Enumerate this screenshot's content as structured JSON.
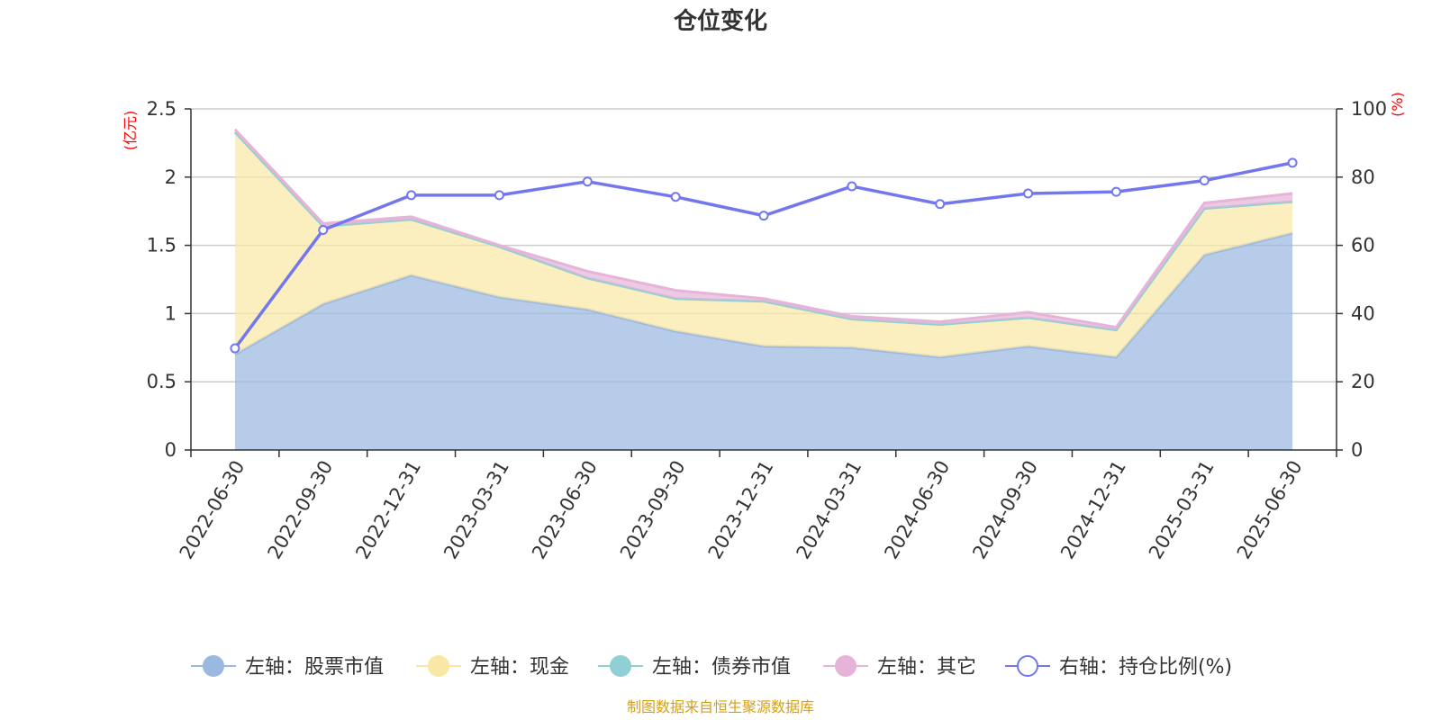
{
  "chart_data": {
    "type": "area",
    "title": "仓位变化",
    "left_axis_unit": "(亿元)",
    "right_axis_unit": "(%)",
    "categories": [
      "2022-06-30",
      "2022-09-30",
      "2022-12-31",
      "2023-03-31",
      "2023-06-30",
      "2023-09-30",
      "2023-12-31",
      "2024-03-31",
      "2024-06-30",
      "2024-09-30",
      "2024-12-31",
      "2025-03-31",
      "2025-06-30"
    ],
    "ylim_left": [
      0,
      2.5
    ],
    "yticks_left": [
      "0",
      "0.5",
      "1",
      "1.5",
      "2",
      "2.5"
    ],
    "ylim_right": [
      0,
      100
    ],
    "yticks_right": [
      "0",
      "20",
      "40",
      "60",
      "80",
      "100"
    ],
    "grid": true,
    "legend_position": "bottom",
    "stacked_series": [
      {
        "name": "左轴：股票市值",
        "color": "#9bb8e0",
        "values": [
          0.7,
          1.07,
          1.28,
          1.12,
          1.03,
          0.87,
          0.76,
          0.75,
          0.68,
          0.76,
          0.68,
          1.43,
          1.59
        ]
      },
      {
        "name": "左轴：现金",
        "color": "#f9e7a6",
        "values": [
          1.63,
          0.57,
          0.41,
          0.37,
          0.23,
          0.24,
          0.33,
          0.21,
          0.24,
          0.21,
          0.2,
          0.34,
          0.23
        ]
      },
      {
        "name": "左轴：债券市值",
        "color": "#90d0d4",
        "values": [
          0,
          0,
          0,
          0,
          0,
          0,
          0,
          0,
          0,
          0,
          0,
          0,
          0
        ]
      },
      {
        "name": "左轴：其它",
        "color": "#e6b4d9",
        "values": [
          0.02,
          0.02,
          0.02,
          0.01,
          0.05,
          0.06,
          0.02,
          0.02,
          0.02,
          0.04,
          0.02,
          0.04,
          0.06
        ]
      }
    ],
    "line_series": {
      "name": "右轴：持仓比例(%)",
      "color": "#7377ee",
      "values": [
        29.8,
        64.5,
        74.7,
        74.7,
        78.7,
        74.2,
        68.7,
        77.3,
        72.1,
        75.2,
        75.7,
        79.0,
        84.2
      ]
    }
  },
  "source_text": "制图数据来自恒生聚源数据库"
}
